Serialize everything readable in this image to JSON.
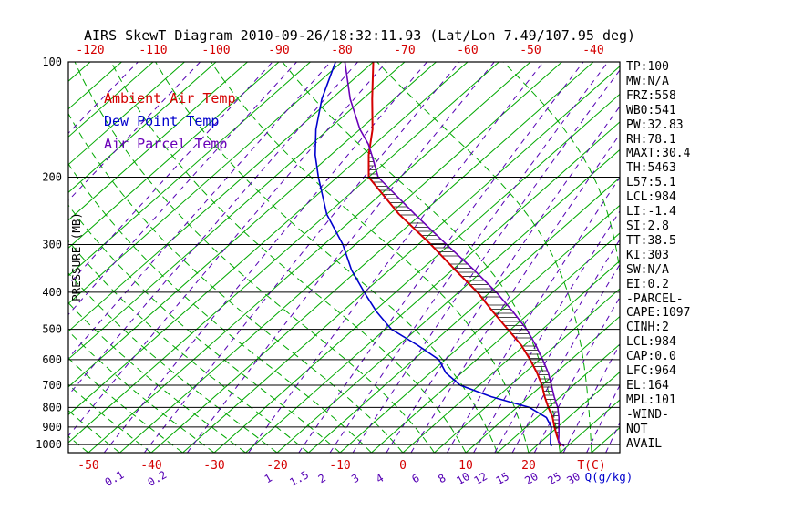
{
  "title": "AIRS SkewT Diagram 2010-09-26/18:32:11.93 (Lat/Lon 7.49/107.95 deg)",
  "legend": [
    {
      "label": "Ambient Air Temp",
      "color": "#d40000"
    },
    {
      "label": "Dew Point Temp",
      "color": "#0000cd"
    },
    {
      "label": "Air Parcel Temp",
      "color": "#6a00b8"
    }
  ],
  "axes": {
    "ylabel": "PRESSURE (MB)",
    "pressure_ticks": [
      100,
      200,
      300,
      400,
      500,
      600,
      700,
      800,
      900,
      1000
    ],
    "top_temp_ticks": [
      -120,
      -110,
      -100,
      -90,
      -80,
      -70,
      -60,
      -50,
      -40
    ],
    "bottom_temp_ticks": [
      -50,
      -40,
      -30,
      -20,
      -10,
      0,
      10,
      20
    ],
    "temp_unit_label": "T(C)",
    "mixing_ratio_ticks": [
      0.1,
      0.2,
      1,
      1.5,
      2,
      3,
      4,
      6,
      8,
      10,
      12,
      15,
      20,
      25,
      30
    ],
    "mixing_unit_label": "Q(g/kg)"
  },
  "stats_panel": [
    "TP:100",
    "MW:N/A",
    "FRZ:558",
    "WB0:541",
    "PW:32.83",
    "RH:78.1",
    "MAXT:30.4",
    "TH:5463",
    "L57:5.1",
    "LCL:984",
    "LI:-1.4",
    "SI:2.8",
    "TT:38.5",
    "KI:303",
    "SW:N/A",
    "EI:0.2",
    "-PARCEL-",
    "CAPE:1097",
    "CINH:2",
    "LCL:984",
    "CAP:0.0",
    "LFC:964",
    "EL:164",
    "MPL:101",
    "-WIND-",
    "NOT",
    "AVAIL"
  ],
  "colors": {
    "isotherm": "#00a800",
    "moist_adiabat": "#00a800",
    "mixing_ratio": "#5500b4",
    "pressure_line": "#000000",
    "axis_label_red": "#d40000",
    "q_label_blue": "#0000cd",
    "hatch": "#333333"
  },
  "chart_data": {
    "type": "line",
    "variant": "skew-t-log-p",
    "title": "AIRS SkewT Diagram 2010-09-26/18:32:11.93 (Lat/Lon 7.49/107.95 deg)",
    "xlabel": "T(C)",
    "ylabel": "PRESSURE (MB)",
    "pressure_range_mb": [
      100,
      1050
    ],
    "temp_range_c_at_1000mb": [
      -50,
      37
    ],
    "grid": "skewed isotherms / log-pressure",
    "isotherm_step_c": 5,
    "moist_adiabat_start_temps_c": [
      -60,
      -55,
      -50,
      -45,
      -40,
      -35,
      -30,
      -25,
      -20,
      -15,
      -10,
      -5,
      0,
      5,
      10,
      15,
      20,
      25,
      30,
      35,
      40
    ],
    "mixing_ratio_lines_gkg": [
      1e-05,
      0.0001,
      0.001,
      0.002,
      0.005,
      0.01,
      0.02,
      0.05,
      0.1,
      0.2,
      0.5,
      1,
      1.5,
      2,
      3,
      4,
      6,
      8,
      10,
      12,
      15,
      20,
      25,
      30
    ],
    "cape_hatch_between": [
      "Air Parcel Temp",
      "Ambient Air Temp"
    ],
    "cape_pressure_range": [
      960,
      170
    ],
    "series": [
      {
        "name": "Ambient Air Temp",
        "color": "#d40000",
        "width": 2,
        "points_p_t": [
          [
            1010,
            24
          ],
          [
            1000,
            23.5
          ],
          [
            950,
            21.5
          ],
          [
            900,
            19.5
          ],
          [
            850,
            17.5
          ],
          [
            800,
            15
          ],
          [
            750,
            12.5
          ],
          [
            700,
            10
          ],
          [
            650,
            7
          ],
          [
            600,
            3.5
          ],
          [
            550,
            -0.5
          ],
          [
            500,
            -5.5
          ],
          [
            450,
            -11
          ],
          [
            400,
            -17
          ],
          [
            350,
            -24.5
          ],
          [
            300,
            -33
          ],
          [
            250,
            -43.5
          ],
          [
            200,
            -55
          ],
          [
            175,
            -59
          ],
          [
            150,
            -63
          ],
          [
            125,
            -68.5
          ],
          [
            100,
            -75
          ]
        ]
      },
      {
        "name": "Dew Point Temp",
        "color": "#0000cd",
        "width": 1.6,
        "points_p_t": [
          [
            1010,
            22.5
          ],
          [
            1000,
            22
          ],
          [
            950,
            20.5
          ],
          [
            900,
            19
          ],
          [
            850,
            16.5
          ],
          [
            800,
            12
          ],
          [
            750,
            4
          ],
          [
            700,
            -3
          ],
          [
            650,
            -7.5
          ],
          [
            600,
            -11
          ],
          [
            550,
            -17
          ],
          [
            500,
            -24
          ],
          [
            450,
            -29.5
          ],
          [
            400,
            -35
          ],
          [
            350,
            -41
          ],
          [
            300,
            -47
          ],
          [
            250,
            -55
          ],
          [
            200,
            -63
          ],
          [
            175,
            -67.5
          ],
          [
            150,
            -72
          ],
          [
            125,
            -76.5
          ],
          [
            100,
            -81
          ]
        ]
      },
      {
        "name": "Air Parcel Temp",
        "color": "#6a00b8",
        "width": 1.6,
        "points_p_t": [
          [
            1010,
            24.5
          ],
          [
            984,
            22.8
          ],
          [
            950,
            21.8
          ],
          [
            900,
            20.2
          ],
          [
            850,
            18.5
          ],
          [
            800,
            16.5
          ],
          [
            750,
            14
          ],
          [
            700,
            11.5
          ],
          [
            650,
            8.8
          ],
          [
            600,
            5.5
          ],
          [
            550,
            1.8
          ],
          [
            500,
            -2.5
          ],
          [
            450,
            -7.8
          ],
          [
            400,
            -14
          ],
          [
            350,
            -21.5
          ],
          [
            300,
            -30.5
          ],
          [
            250,
            -41
          ],
          [
            200,
            -53.5
          ],
          [
            175,
            -58.5
          ],
          [
            164,
            -61
          ],
          [
            150,
            -65
          ],
          [
            125,
            -72
          ],
          [
            100,
            -79.5
          ]
        ]
      }
    ]
  }
}
